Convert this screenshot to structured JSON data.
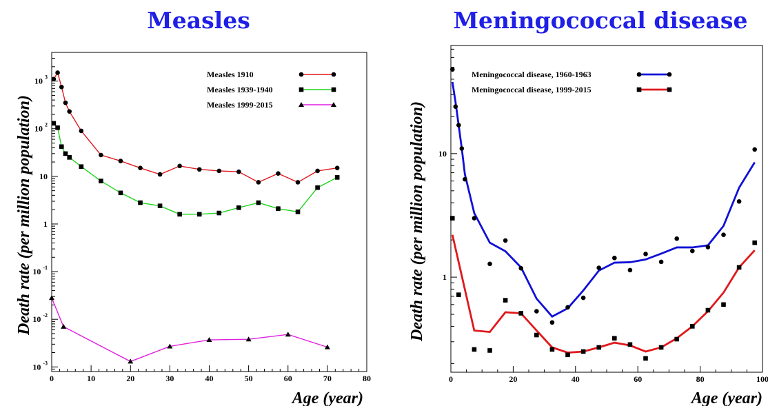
{
  "colors": {
    "title": "#1f1fe6",
    "red": "#e0181c",
    "green": "#1ed41e",
    "magenta": "#e020e0",
    "blue": "#1010d8"
  },
  "chart_data": [
    {
      "type": "line",
      "title": "Measles",
      "xlabel": "Age (year)",
      "ylabel": "Death rate (per million population)",
      "yscale": "log",
      "xlim": [
        0,
        80
      ],
      "ylim": [
        0.0008,
        4000
      ],
      "xticks": [
        "0",
        "10",
        "20",
        "30",
        "40",
        "50",
        "60",
        "70",
        "80"
      ],
      "yticks": [
        {
          "base": "10",
          "exp": "3"
        },
        {
          "base": "10",
          "exp": "2"
        },
        {
          "base": "10",
          "exp": ""
        },
        {
          "base": "1",
          "exp": ""
        },
        {
          "base": "10",
          "exp": "-1"
        },
        {
          "base": "10",
          "exp": "-2"
        },
        {
          "base": "10",
          "exp": "-3"
        }
      ],
      "legend_position": "top-right",
      "series": [
        {
          "name": "Measles 1910",
          "color": "#e0181c",
          "marker": "circle",
          "x": [
            0.5,
            1.5,
            2.5,
            3.5,
            4.5,
            7.5,
            12.5,
            17.5,
            22.5,
            27.5,
            32.5,
            37.5,
            42.5,
            47.5,
            52.5,
            57.5,
            62.5,
            67.5,
            72.5
          ],
          "y": [
            1100,
            1500,
            750,
            350,
            230,
            90,
            28,
            21,
            15,
            11,
            16.5,
            14,
            13,
            12.5,
            7.5,
            11.5,
            7.5,
            13,
            15
          ]
        },
        {
          "name": "Measles 1939-1940",
          "color": "#1ed41e",
          "marker": "square",
          "x": [
            0.5,
            1.5,
            2.5,
            3.5,
            4.5,
            7.5,
            12.5,
            17.5,
            22.5,
            27.5,
            32.5,
            37.5,
            42.5,
            47.5,
            52.5,
            57.5,
            62.5,
            67.5,
            72.5
          ],
          "y": [
            130,
            105,
            42,
            30,
            25,
            16,
            8,
            4.5,
            2.8,
            2.4,
            1.6,
            1.6,
            1.7,
            2.2,
            2.8,
            2.1,
            1.8,
            5.8,
            9.5
          ]
        },
        {
          "name": "Measles 1999-2015",
          "color": "#e020e0",
          "marker": "triangle",
          "x": [
            0,
            3,
            20,
            30,
            40,
            50,
            60,
            70
          ],
          "y": [
            0.028,
            0.007,
            0.0013,
            0.0027,
            0.0037,
            0.0038,
            0.0048,
            0.0026
          ]
        }
      ]
    },
    {
      "type": "line",
      "title": "Meningococcal disease",
      "xlabel": "Age (year)",
      "ylabel": "Death rate (per million population)",
      "yscale": "log",
      "xlim": [
        0,
        100
      ],
      "ylim": [
        0.17,
        75
      ],
      "xticks": [
        "0",
        "20",
        "40",
        "60",
        "80",
        "100"
      ],
      "yticks": [
        "10",
        "1"
      ],
      "legend_position": "top-left",
      "series": [
        {
          "name": "Meningococcal disease, 1960-1963",
          "color": "#1010d8",
          "marker": "circle",
          "line_x": [
            0.5,
            1.5,
            2.5,
            3.5,
            4.5,
            7.5,
            12.5,
            17.5,
            22.5,
            27.5,
            32.5,
            37.5,
            42.5,
            47.5,
            52.5,
            57.5,
            62.5,
            67.5,
            72.5,
            77.5,
            82.5,
            87.5,
            92.5,
            97.5
          ],
          "line_y": [
            38,
            26,
            17,
            11,
            6.8,
            3.3,
            1.9,
            1.62,
            1.2,
            0.67,
            0.48,
            0.56,
            0.78,
            1.13,
            1.31,
            1.32,
            1.39,
            1.55,
            1.74,
            1.74,
            1.81,
            2.6,
            5.3,
            8.5
          ],
          "points_x": [
            0.5,
            1.5,
            2.5,
            3.5,
            4.5,
            7.5,
            12.5,
            17.5,
            22.5,
            27.5,
            32.5,
            37.5,
            42.5,
            47.5,
            52.5,
            57.5,
            62.5,
            67.5,
            72.5,
            77.5,
            82.5,
            87.5,
            92.5,
            97.5
          ],
          "points_y": [
            48,
            24,
            17,
            11,
            6.2,
            3.0,
            1.28,
            1.98,
            1.18,
            0.53,
            0.43,
            0.57,
            0.68,
            1.19,
            1.43,
            1.14,
            1.54,
            1.33,
            2.05,
            1.63,
            1.75,
            2.2,
            4.1,
            10.8
          ]
        },
        {
          "name": "Meningococcal disease, 1999-2015",
          "color": "#e0181c",
          "marker": "square",
          "line_x": [
            0.5,
            7.5,
            12.5,
            17.5,
            22.5,
            27.5,
            32.5,
            37.5,
            42.5,
            47.5,
            52.5,
            57.5,
            62.5,
            67.5,
            72.5,
            77.5,
            82.5,
            87.5,
            92.5,
            97.5
          ],
          "line_y": [
            2.2,
            0.37,
            0.36,
            0.52,
            0.51,
            0.37,
            0.27,
            0.245,
            0.25,
            0.27,
            0.295,
            0.28,
            0.25,
            0.27,
            0.32,
            0.4,
            0.53,
            0.75,
            1.2,
            1.65
          ],
          "points_x": [
            0.5,
            2.5,
            7.5,
            12.5,
            17.5,
            22.5,
            27.5,
            32.5,
            37.5,
            42.5,
            47.5,
            52.5,
            57.5,
            62.5,
            67.5,
            72.5,
            77.5,
            82.5,
            87.5,
            92.5,
            97.5
          ],
          "points_y": [
            3.0,
            0.72,
            0.26,
            0.255,
            0.65,
            0.51,
            0.34,
            0.26,
            0.235,
            0.25,
            0.27,
            0.32,
            0.285,
            0.22,
            0.27,
            0.315,
            0.4,
            0.54,
            0.6,
            1.2,
            1.9
          ]
        }
      ]
    }
  ]
}
